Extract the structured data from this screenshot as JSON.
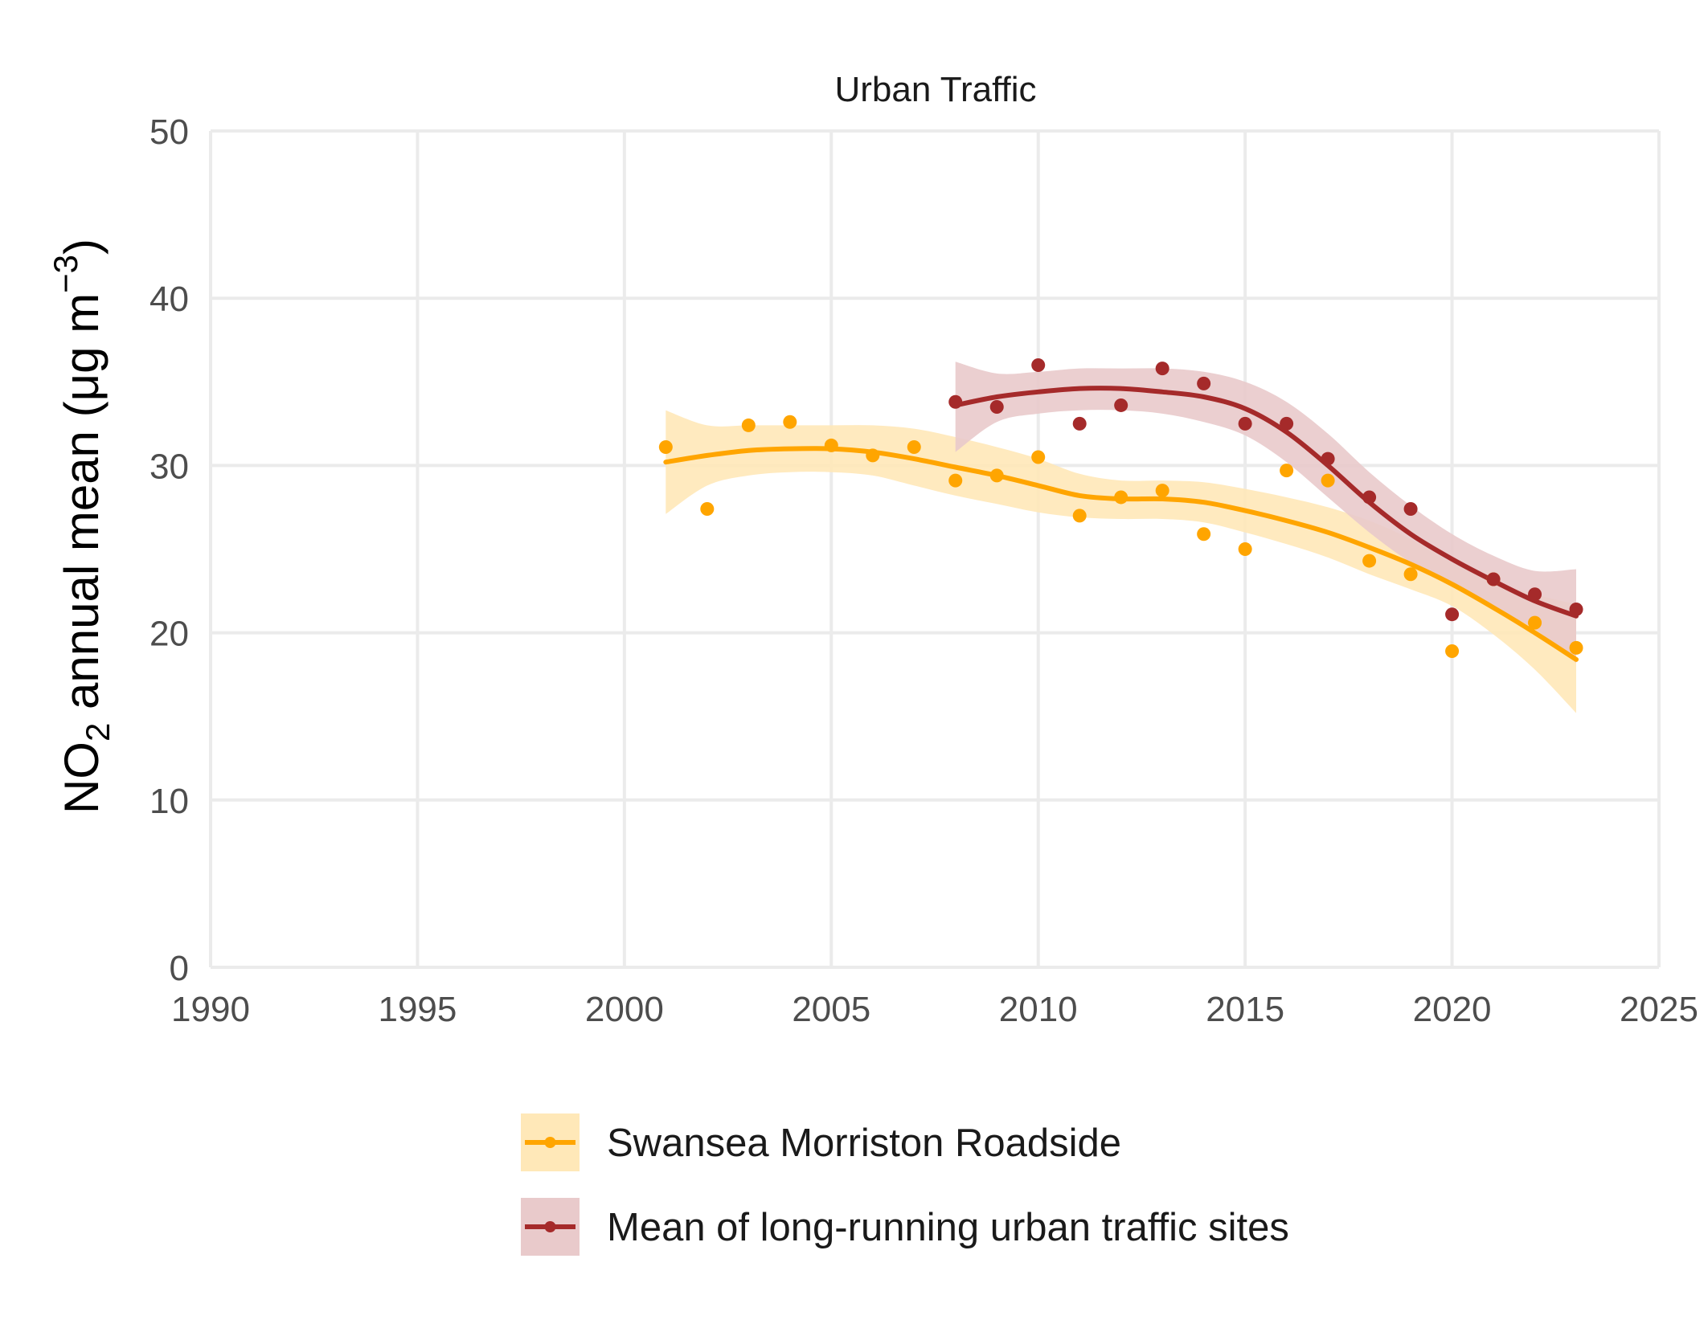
{
  "chart_data": {
    "type": "scatter",
    "title": "Urban Traffic",
    "ylabel": {
      "main": "NO",
      "sub": "2",
      "rest": " annual mean (μg m",
      "sup": "−3",
      "close": ")"
    },
    "xlim": [
      1990,
      2025
    ],
    "ylim": [
      0,
      50
    ],
    "x_ticks": [
      "1990",
      "1995",
      "2000",
      "2005",
      "2010",
      "2015",
      "2020",
      "2025"
    ],
    "y_ticks": [
      "0",
      "10",
      "20",
      "30",
      "40",
      "50"
    ],
    "grid": true,
    "legend_position": "bottom",
    "series": [
      {
        "name": "Swansea Morriston Roadside",
        "color": "#FFA500",
        "band_color": "#FFE8B8",
        "x": [
          2001,
          2002,
          2003,
          2004,
          2005,
          2006,
          2007,
          2008,
          2009,
          2010,
          2011,
          2012,
          2013,
          2014,
          2015,
          2016,
          2017,
          2018,
          2019,
          2020,
          2021,
          2022,
          2023
        ],
        "y": [
          31.1,
          27.4,
          32.4,
          32.6,
          31.2,
          30.6,
          31.1,
          29.1,
          29.4,
          30.5,
          27.0,
          28.1,
          28.5,
          25.9,
          25.0,
          29.7,
          29.1,
          24.3,
          23.5,
          18.9,
          23.2,
          20.6,
          19.1
        ],
        "trend_x": [
          2001,
          2002,
          2003,
          2004,
          2005,
          2006,
          2007,
          2008,
          2009,
          2010,
          2011,
          2012,
          2013,
          2014,
          2015,
          2016,
          2017,
          2018,
          2019,
          2020,
          2021,
          2022,
          2023
        ],
        "trend": [
          30.2,
          30.6,
          30.9,
          31.0,
          31.0,
          30.8,
          30.4,
          29.9,
          29.4,
          28.8,
          28.2,
          28.0,
          28.0,
          27.8,
          27.3,
          26.7,
          26.0,
          25.1,
          24.1,
          22.9,
          21.5,
          20.0,
          18.4
        ],
        "band_upper": [
          33.3,
          32.4,
          32.4,
          32.4,
          32.4,
          32.4,
          32.2,
          31.7,
          31.1,
          30.4,
          29.5,
          29.1,
          29.1,
          29.0,
          28.6,
          28.1,
          27.5,
          26.7,
          25.6,
          24.2,
          23.1,
          22.3,
          21.7
        ],
        "band_lower": [
          27.1,
          28.8,
          29.4,
          29.6,
          29.6,
          29.4,
          28.8,
          28.2,
          27.7,
          27.2,
          26.9,
          26.8,
          26.8,
          26.6,
          26.0,
          25.3,
          24.5,
          23.5,
          22.6,
          21.6,
          19.9,
          17.8,
          15.2
        ]
      },
      {
        "name": "Mean of long-running urban traffic sites",
        "color": "#A52A2A",
        "band_color": "#E9CACB",
        "x": [
          2008,
          2009,
          2010,
          2011,
          2012,
          2013,
          2014,
          2015,
          2016,
          2017,
          2018,
          2019,
          2020,
          2021,
          2022,
          2023
        ],
        "y": [
          33.8,
          33.5,
          36.0,
          32.5,
          33.6,
          35.8,
          34.9,
          32.5,
          32.5,
          30.4,
          28.1,
          27.4,
          21.1,
          23.2,
          22.3,
          21.4
        ],
        "trend_x": [
          2008,
          2009,
          2010,
          2011,
          2012,
          2013,
          2014,
          2015,
          2016,
          2017,
          2018,
          2019,
          2020,
          2021,
          2022,
          2023
        ],
        "trend": [
          33.6,
          34.1,
          34.4,
          34.6,
          34.6,
          34.4,
          34.1,
          33.4,
          32.0,
          30.0,
          27.8,
          25.9,
          24.4,
          23.1,
          21.9,
          21.0
        ],
        "band_upper": [
          36.2,
          35.5,
          35.6,
          35.8,
          35.8,
          35.8,
          35.6,
          35.0,
          33.8,
          31.9,
          29.6,
          27.6,
          25.9,
          24.6,
          23.7,
          23.8
        ],
        "band_lower": [
          30.8,
          32.6,
          33.1,
          33.3,
          33.3,
          33.1,
          32.6,
          31.8,
          30.2,
          28.1,
          26.0,
          24.2,
          22.8,
          21.5,
          20.2,
          18.2
        ]
      }
    ]
  }
}
